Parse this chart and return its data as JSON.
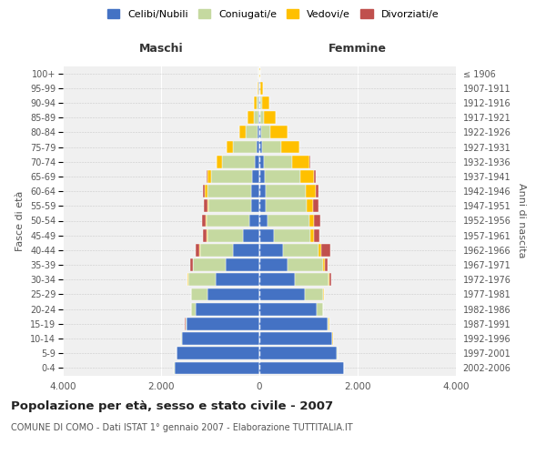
{
  "age_groups": [
    "0-4",
    "5-9",
    "10-14",
    "15-19",
    "20-24",
    "25-29",
    "30-34",
    "35-39",
    "40-44",
    "45-49",
    "50-54",
    "55-59",
    "60-64",
    "65-69",
    "70-74",
    "75-79",
    "80-84",
    "85-89",
    "90-94",
    "95-99",
    "100+"
  ],
  "birth_years": [
    "2002-2006",
    "1997-2001",
    "1992-1996",
    "1987-1991",
    "1982-1986",
    "1977-1981",
    "1972-1976",
    "1967-1971",
    "1962-1966",
    "1957-1961",
    "1952-1956",
    "1947-1951",
    "1942-1946",
    "1937-1941",
    "1932-1936",
    "1927-1931",
    "1922-1926",
    "1917-1921",
    "1912-1916",
    "1907-1911",
    "≤ 1906"
  ],
  "maschi_celibi": [
    1730,
    1680,
    1580,
    1480,
    1300,
    1060,
    880,
    680,
    530,
    340,
    210,
    165,
    160,
    140,
    100,
    60,
    40,
    25,
    15,
    10,
    5
  ],
  "maschi_coniugati": [
    4,
    4,
    8,
    25,
    90,
    320,
    570,
    670,
    680,
    720,
    860,
    870,
    900,
    840,
    660,
    470,
    230,
    95,
    45,
    15,
    5
  ],
  "maschi_vedovi": [
    4,
    4,
    4,
    4,
    4,
    4,
    4,
    4,
    8,
    12,
    18,
    25,
    45,
    75,
    110,
    140,
    140,
    120,
    55,
    12,
    4
  ],
  "maschi_divorziati": [
    0,
    0,
    0,
    4,
    4,
    8,
    18,
    55,
    75,
    75,
    85,
    65,
    48,
    28,
    8,
    4,
    0,
    0,
    0,
    0,
    0
  ],
  "femmine_nubili": [
    1720,
    1580,
    1480,
    1380,
    1170,
    920,
    730,
    580,
    480,
    290,
    175,
    135,
    125,
    110,
    90,
    60,
    40,
    25,
    15,
    10,
    5
  ],
  "femmine_coniugate": [
    4,
    4,
    8,
    35,
    120,
    380,
    680,
    720,
    720,
    750,
    850,
    820,
    820,
    720,
    570,
    380,
    190,
    75,
    45,
    12,
    4
  ],
  "femmine_vedove": [
    4,
    4,
    4,
    4,
    4,
    8,
    18,
    38,
    55,
    75,
    95,
    145,
    195,
    285,
    360,
    380,
    340,
    240,
    140,
    45,
    8
  ],
  "femmine_divorziate": [
    0,
    0,
    0,
    4,
    4,
    8,
    28,
    55,
    195,
    115,
    115,
    95,
    65,
    38,
    12,
    4,
    0,
    0,
    0,
    0,
    0
  ],
  "colors": {
    "celibi": "#4472c4",
    "coniugati": "#c5d9a0",
    "vedovi": "#ffc000",
    "divorziati": "#c0504d"
  },
  "xlim": 4000,
  "title": "Popolazione per età, sesso e stato civile - 2007",
  "subtitle": "COMUNE DI COMO - Dati ISTAT 1° gennaio 2007 - Elaborazione TUTTITALIA.IT",
  "ylabel_left": "Fasce di età",
  "ylabel_right": "Anni di nascita",
  "xlabel_left": "Maschi",
  "xlabel_right": "Femmine",
  "bg_color": "#f0f0f0",
  "legend_labels": [
    "Celibi/Nubili",
    "Coniugati/e",
    "Vedovi/e",
    "Divorziati/e"
  ]
}
